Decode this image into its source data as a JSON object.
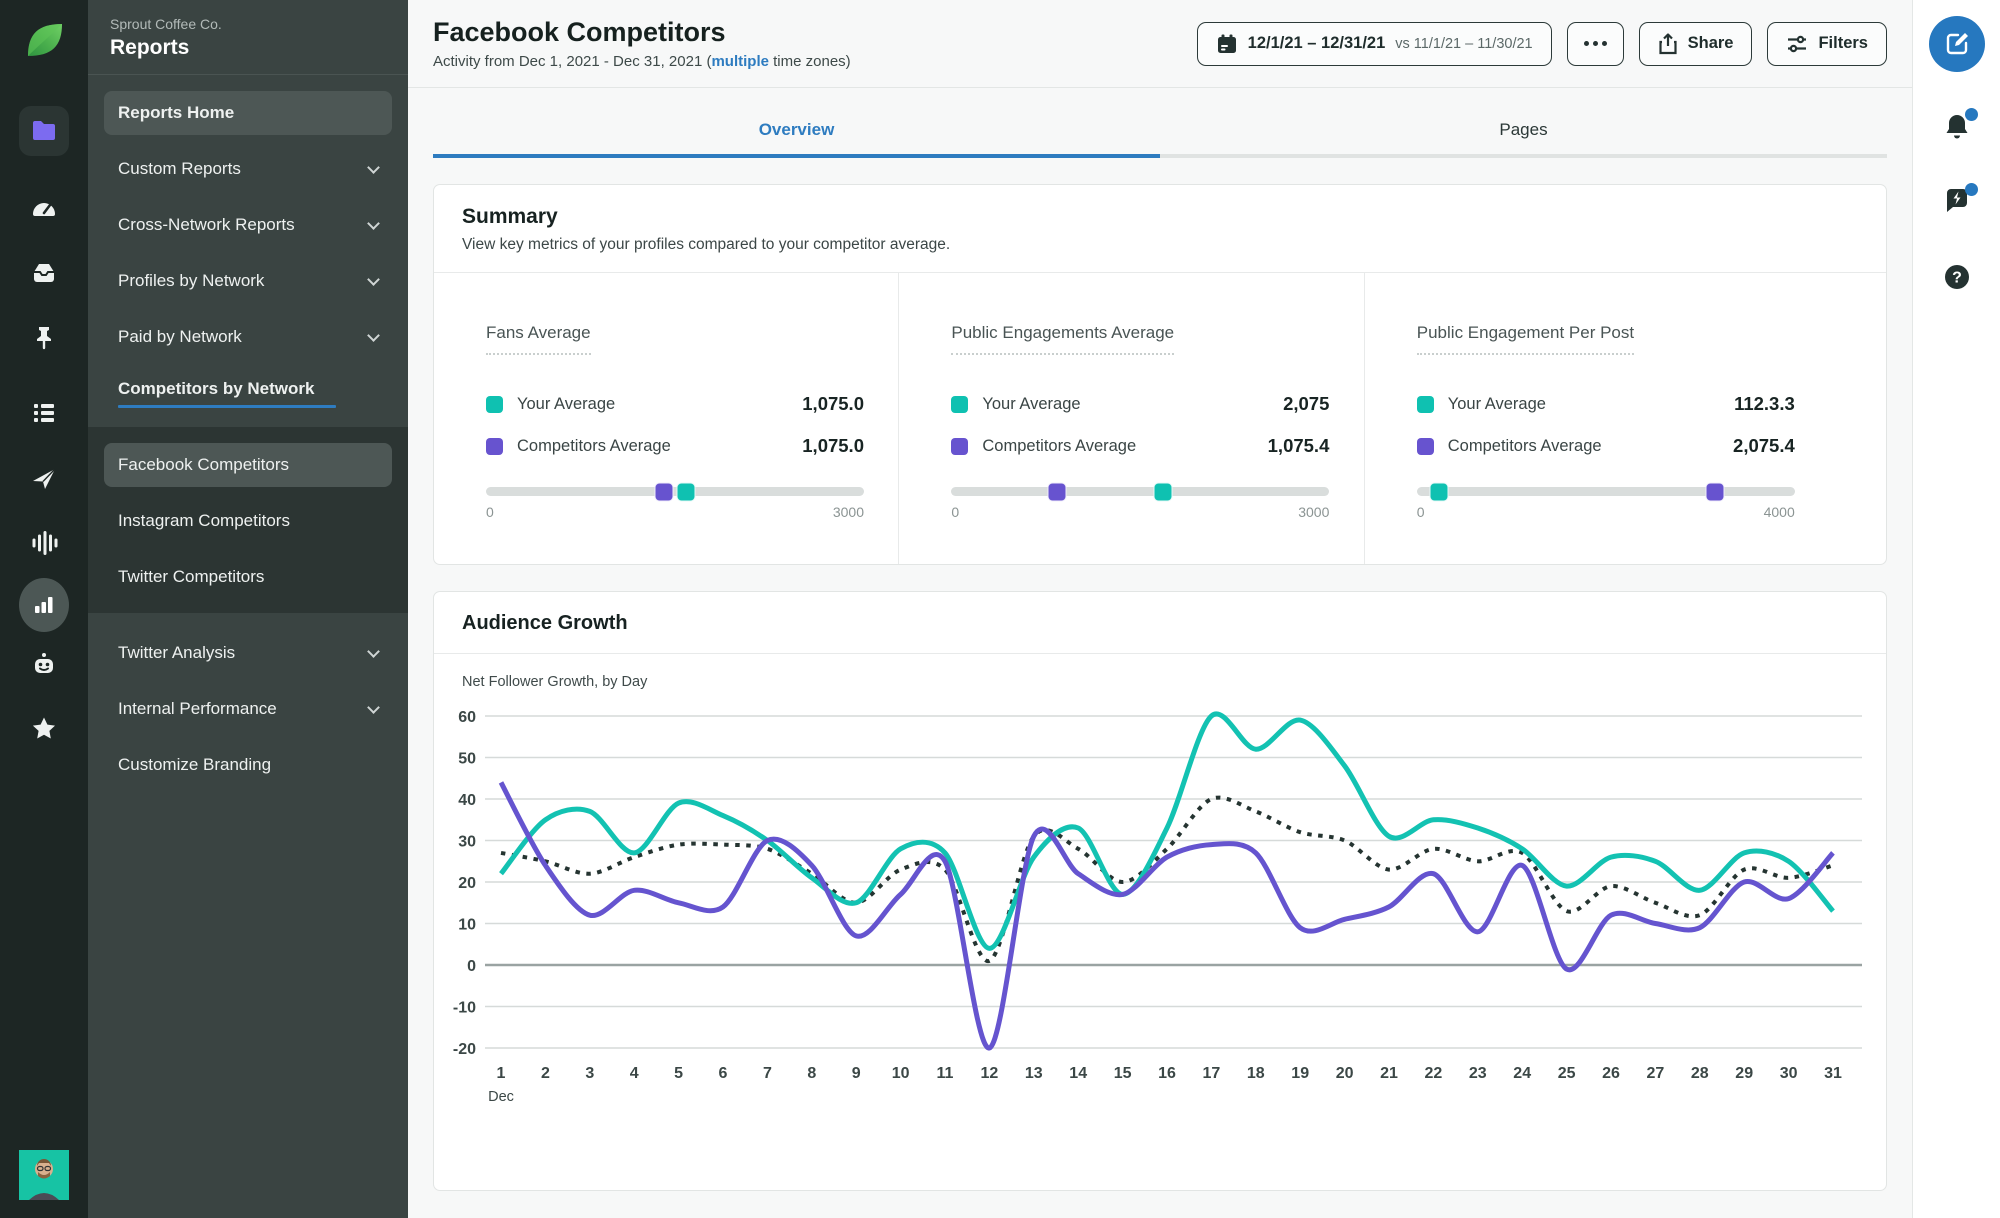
{
  "colors": {
    "accent_blue": "#2e7cc0",
    "teal": "#13c2b2",
    "purple": "#6554cf",
    "dotted_line": "#253431",
    "sidebar_rail": "#1d2624",
    "sidebar_panel": "#3a4442",
    "submenu_bg": "#2c3533",
    "active_pill": "#4d5755"
  },
  "brand": {
    "workspace": "Sprout Coffee Co.",
    "product": "Reports"
  },
  "sidebar": {
    "menu": [
      {
        "label": "Reports Home"
      },
      {
        "label": "Custom Reports"
      },
      {
        "label": "Cross-Network Reports"
      },
      {
        "label": "Profiles by Network"
      },
      {
        "label": "Paid by Network"
      },
      {
        "label": "Competitors by Network"
      }
    ],
    "submenu": [
      {
        "label": "Facebook Competitors"
      },
      {
        "label": "Instagram Competitors"
      },
      {
        "label": "Twitter Competitors"
      }
    ],
    "menu_lower": [
      {
        "label": "Twitter Analysis"
      },
      {
        "label": "Internal Performance"
      },
      {
        "label": "Customize Branding"
      }
    ]
  },
  "header": {
    "title": "Facebook Competitors",
    "subtitle_prefix": "Activity from Dec 1, 2021 - Dec 31, 2021 (",
    "subtitle_link": "multiple",
    "subtitle_suffix": " time zones)",
    "date_range": "12/1/21 – 12/31/21",
    "compare_range": "vs 11/1/21 – 11/30/21",
    "share_label": "Share",
    "filters_label": "Filters"
  },
  "tabs": [
    {
      "label": "Overview",
      "active": true
    },
    {
      "label": "Pages",
      "active": false
    }
  ],
  "summary": {
    "title": "Summary",
    "description": "View key metrics of your profiles compared to your competitor average.",
    "metrics": [
      {
        "label": "Fans Average",
        "rows": [
          {
            "name": "Your Average",
            "value": "1,075.0",
            "color": "teal"
          },
          {
            "name": "Competitors Average",
            "value": "1,075.0",
            "color": "purple"
          }
        ],
        "min": "0",
        "max": "3000",
        "markers": [
          {
            "color": "purple",
            "pct": 47
          },
          {
            "color": "teal",
            "pct": 53
          }
        ]
      },
      {
        "label": "Public Engagements Average",
        "rows": [
          {
            "name": "Your Average",
            "value": "2,075",
            "color": "teal"
          },
          {
            "name": "Competitors Average",
            "value": "1,075.4",
            "color": "purple"
          }
        ],
        "min": "0",
        "max": "3000",
        "markers": [
          {
            "color": "purple",
            "pct": 28
          },
          {
            "color": "teal",
            "pct": 56
          }
        ]
      },
      {
        "label": "Public Engagement Per Post",
        "rows": [
          {
            "name": "Your Average",
            "value": "112.3.3",
            "color": "teal"
          },
          {
            "name": "Competitors Average",
            "value": "2,075.4",
            "color": "purple"
          }
        ],
        "min": "0",
        "max": "4000",
        "markers": [
          {
            "color": "teal",
            "pct": 6
          },
          {
            "color": "purple",
            "pct": 79
          }
        ]
      }
    ]
  },
  "audience_growth": {
    "title": "Audience Growth",
    "chart_data": {
      "type": "line",
      "title": "Audience Growth",
      "subtitle": "Net Follower Growth, by Day",
      "x": [
        1,
        2,
        3,
        4,
        5,
        6,
        7,
        8,
        9,
        10,
        11,
        12,
        13,
        14,
        15,
        16,
        17,
        18,
        19,
        20,
        21,
        22,
        23,
        24,
        25,
        26,
        27,
        28,
        29,
        30,
        31
      ],
      "x_month_label": "Dec",
      "ylim": [
        -20,
        60
      ],
      "yticks": [
        60,
        50,
        40,
        30,
        20,
        10,
        0,
        -10,
        -20
      ],
      "grid": true,
      "legend_position": "none",
      "series": [
        {
          "name": "teal",
          "color": "#13c2b2",
          "style": "solid",
          "values": [
            22,
            35,
            37,
            27,
            39,
            36,
            30,
            21,
            15,
            28,
            27,
            4,
            26,
            33,
            17,
            33,
            60,
            52,
            59,
            48,
            31,
            35,
            33,
            28,
            19,
            26,
            25,
            18,
            27,
            25,
            13
          ]
        },
        {
          "name": "purple",
          "color": "#6554cf",
          "style": "solid",
          "values": [
            44,
            24,
            12,
            18,
            15,
            14,
            30,
            24,
            7,
            17,
            25,
            -20,
            31,
            22,
            17,
            26,
            29,
            27,
            9,
            11,
            14,
            22,
            8,
            24,
            -1,
            12,
            10,
            9,
            20,
            16,
            27
          ]
        },
        {
          "name": "dotted",
          "color": "#253431",
          "style": "dotted",
          "values": [
            27,
            25,
            22,
            26,
            29,
            29,
            28,
            22,
            15,
            23,
            23,
            1,
            31,
            28,
            20,
            28,
            40,
            37,
            32,
            30,
            23,
            28,
            25,
            27,
            13,
            19,
            15,
            12,
            23,
            21,
            24
          ]
        }
      ]
    }
  }
}
